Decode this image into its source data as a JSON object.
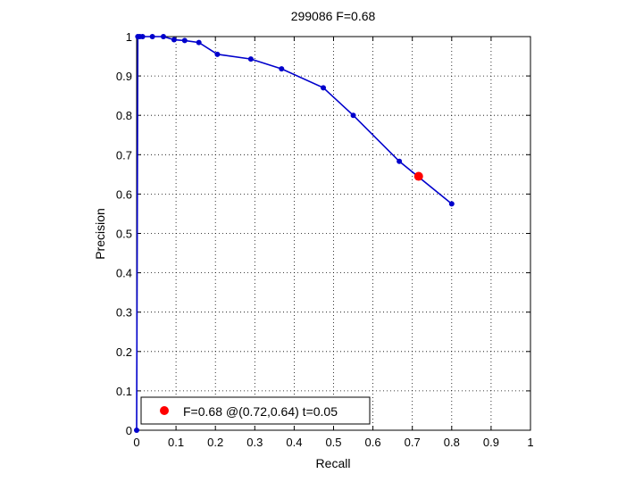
{
  "chart_data": {
    "type": "line",
    "title": "299086 F=0.68",
    "xlabel": "Recall",
    "ylabel": "Precision",
    "xlim": [
      0,
      1
    ],
    "ylim": [
      0,
      1
    ],
    "xticks": [
      "0",
      "0.1",
      "0.2",
      "0.3",
      "0.4",
      "0.5",
      "0.6",
      "0.7",
      "0.8",
      "0.9",
      "1"
    ],
    "yticks": [
      "0",
      "0.1",
      "0.2",
      "0.3",
      "0.4",
      "0.5",
      "0.6",
      "0.7",
      "0.8",
      "0.9",
      "1"
    ],
    "grid": true,
    "legend_position": "bottom-left",
    "series": [
      {
        "color": "#0000cc",
        "marker": "dot",
        "points": [
          [
            0.0,
            0.0
          ],
          [
            0.003,
            1.0
          ],
          [
            0.008,
            1.0
          ],
          [
            0.015,
            1.0
          ],
          [
            0.04,
            1.0
          ],
          [
            0.068,
            1.0
          ],
          [
            0.095,
            0.992
          ],
          [
            0.122,
            0.99
          ],
          [
            0.158,
            0.985
          ],
          [
            0.205,
            0.955
          ],
          [
            0.29,
            0.943
          ],
          [
            0.368,
            0.918
          ],
          [
            0.474,
            0.87
          ],
          [
            0.55,
            0.8
          ],
          [
            0.667,
            0.683
          ],
          [
            0.8,
            0.575
          ]
        ]
      }
    ],
    "highlight": {
      "label": "F=0.68 @(0.72,0.64) t=0.05",
      "x": 0.716,
      "y": 0.645,
      "color": "#ff0000"
    }
  }
}
